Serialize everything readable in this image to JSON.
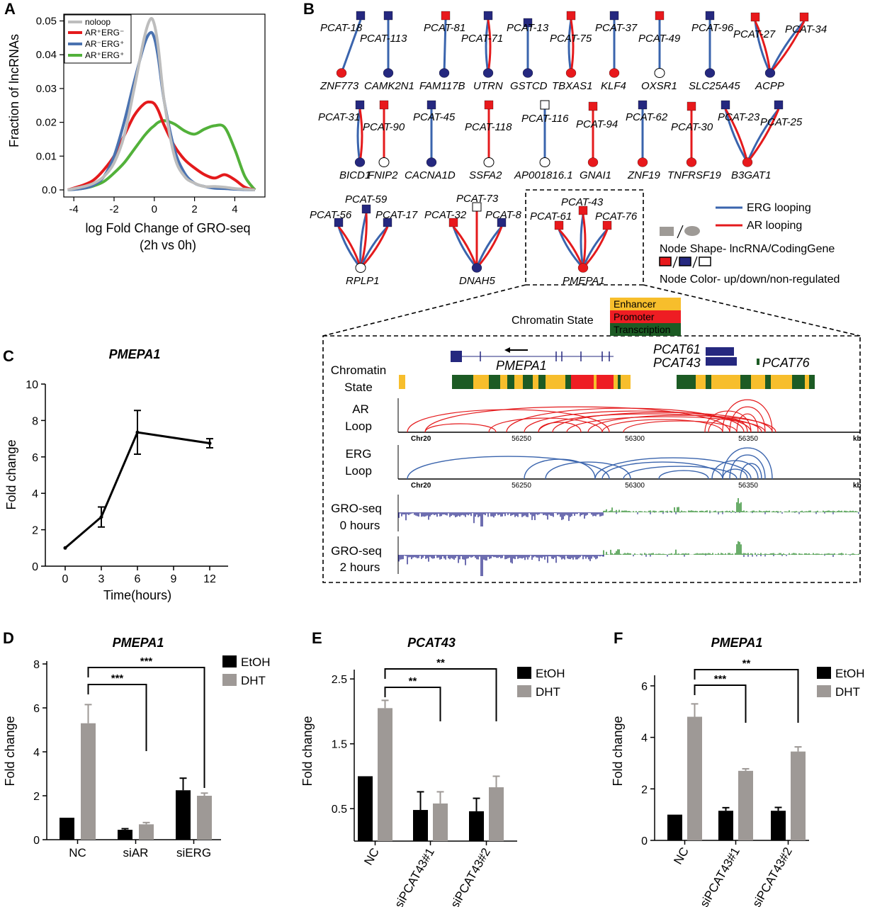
{
  "panels": {
    "A": "A",
    "B": "B",
    "C": "C",
    "D": "D",
    "E": "E",
    "F": "F"
  },
  "colors": {
    "up": "#e8191c",
    "down": "#25287f",
    "erg_loop": "#3a64ad",
    "ar_loop": "#e41a1c",
    "noloop": "#bdbdbd",
    "ar_erg_neg": "#e41a1c",
    "ar_neg_erg_pos": "#4a72b0",
    "ar_pos_erg_pos": "#52b13a",
    "enhancer": "#f7be2c",
    "promoter": "#ee1d23",
    "transcription": "#1c5b24",
    "etoh": "#000000",
    "dht": "#9e9996",
    "gro_neg": "#2f2f8f",
    "gro_pos": "#2a8a2a"
  },
  "panel_a": {
    "xlabel_line1": "log Fold Change of GRO-seq",
    "xlabel_line2": "(2h vs 0h)",
    "ylabel": "Fraction of lncRNAs",
    "xticks": [
      "-4",
      "-2",
      "0",
      "2",
      "4"
    ],
    "yticks": [
      "0.0",
      "0.01",
      "0.02",
      "0.03",
      "0.04",
      "0.05"
    ],
    "legend": [
      {
        "key": "noloop",
        "label": "noloop"
      },
      {
        "key": "ar_erg_neg",
        "label": "AR⁺ERG⁻"
      },
      {
        "key": "ar_neg_erg_pos",
        "label": "AR⁻ERG⁺"
      },
      {
        "key": "ar_pos_erg_pos",
        "label": "AR⁺ERG⁺"
      }
    ]
  },
  "panel_b": {
    "legend": {
      "erg_loop": "ERG looping",
      "ar_loop": "AR looping",
      "shape": "Node Shape- lncRNA/CodingGene",
      "color": "Node Color- up/down/non-regulated"
    },
    "lnc_labels": [
      "PCAT-18",
      "PCAT-113",
      "PCAT-81",
      "PCAT-71",
      "PCAT-13",
      "PCAT-75",
      "PCAT-37",
      "PCAT-49",
      "PCAT-96",
      "PCAT-27",
      "PCAT-34",
      "PCAT-31",
      "PCAT-90",
      "PCAT-45",
      "PCAT-118",
      "PCAT-116",
      "PCAT-94",
      "PCAT-62",
      "PCAT-30",
      "PCAT-23",
      "PCAT-25",
      "PCAT-59",
      "PCAT-56",
      "PCAT-17",
      "PCAT-73",
      "PCAT-32",
      "PCAT-8",
      "PCAT-43",
      "PCAT-61",
      "PCAT-76"
    ],
    "gene_labels": [
      "ZNF773",
      "CAMK2N1",
      "FAM117B",
      "UTRN",
      "GSTCD",
      "TBXAS1",
      "KLF4",
      "OXSR1",
      "SLC25A45",
      "ACPP",
      "BICD1",
      "FNIP2",
      "CACNA1D",
      "SSFA2",
      "AP001816.1",
      "GNAI1",
      "ZNF19",
      "TNFRSF19",
      "B3GAT1",
      "RPLP1",
      "DNAH5",
      "PMEPA1"
    ],
    "browser": {
      "chromatin_state_title": "Chromatin State",
      "states": [
        "Enhancer",
        "Promoter",
        "Transcription"
      ],
      "track_chromatin": "Chromatin State",
      "gene_pmepa1": "PMEPA1",
      "gene_pcat61": "PCAT61",
      "gene_pcat43": "PCAT43",
      "gene_pcat76": "PCAT76",
      "ar_loop": "AR Loop",
      "erg_loop": "ERG Loop",
      "gro0": "GRO-seq 0 hours",
      "gro2": "GRO-seq 2 hours",
      "chr": "Chr20",
      "kb": "kb",
      "coords": [
        "56250",
        "56300",
        "56350"
      ]
    }
  },
  "panel_c": {
    "title": "PMEPA1",
    "xlabel": "Time(hours)",
    "ylabel": "Fold change",
    "xticks": [
      "0",
      "3",
      "6",
      "9",
      "12"
    ],
    "yticks": [
      "0",
      "2",
      "4",
      "6",
      "8",
      "10"
    ]
  },
  "panel_d": {
    "title": "PMEPA1",
    "ylabel": "Fold change",
    "categories": [
      "NC",
      "siAR",
      "siERG"
    ],
    "yticks": [
      "0",
      "2",
      "4",
      "6",
      "8"
    ],
    "legend": [
      "EtOH",
      "DHT"
    ],
    "sig": [
      "***",
      "***"
    ]
  },
  "panel_e": {
    "title": "PCAT43",
    "ylabel": "Fold change",
    "categories": [
      "NC",
      "siPCAT43#1",
      "siPCAT43#2"
    ],
    "yticks": [
      "0.5",
      "1.5",
      "2.5"
    ],
    "legend": [
      "EtOH",
      "DHT"
    ],
    "sig": [
      "**",
      "**"
    ]
  },
  "panel_f": {
    "title": "PMEPA1",
    "ylabel": "Fold change",
    "categories": [
      "NC",
      "siPCAT43#1",
      "siPCAT43#2"
    ],
    "yticks": [
      "0",
      "2",
      "4",
      "6"
    ],
    "legend": [
      "EtOH",
      "DHT"
    ],
    "sig": [
      "***",
      "**"
    ]
  },
  "chart_data": [
    {
      "type": "line",
      "title": "",
      "xlabel": "log Fold Change of GRO-seq (2h vs 0h)",
      "ylabel": "Fraction of lncRNAs",
      "xlim": [
        -4.5,
        5.5
      ],
      "ylim": [
        0,
        0.052
      ],
      "x": [
        -4.3,
        -3.5,
        -3,
        -2.5,
        -2,
        -1.5,
        -1,
        -0.5,
        -0.2,
        0,
        0.2,
        0.5,
        1,
        1.5,
        2,
        2.5,
        3,
        3.5,
        4,
        4.5,
        5
      ],
      "series": [
        {
          "name": "noloop",
          "values": [
            0.0,
            0.001,
            0.002,
            0.004,
            0.008,
            0.016,
            0.03,
            0.045,
            0.0505,
            0.049,
            0.042,
            0.026,
            0.01,
            0.004,
            0.002,
            0.001,
            0.001,
            0.0008,
            0.0004,
            0.0002,
            0.0
          ]
        },
        {
          "name": "AR⁺ERG⁻",
          "values": [
            0.0,
            0.0015,
            0.003,
            0.006,
            0.01,
            0.016,
            0.022,
            0.0255,
            0.026,
            0.0255,
            0.0235,
            0.019,
            0.013,
            0.009,
            0.0065,
            0.0045,
            0.0035,
            0.0045,
            0.003,
            0.0008,
            0.0
          ]
        },
        {
          "name": "AR⁻ERG⁺",
          "values": [
            0.0,
            0.0005,
            0.0015,
            0.004,
            0.01,
            0.02,
            0.032,
            0.043,
            0.0465,
            0.045,
            0.039,
            0.026,
            0.012,
            0.005,
            0.002,
            0.001,
            0.0005,
            0.0004,
            0.0002,
            0.0001,
            0.0
          ]
        },
        {
          "name": "AR⁺ERG⁺",
          "values": [
            0.0,
            0.0005,
            0.0012,
            0.0025,
            0.005,
            0.008,
            0.012,
            0.016,
            0.018,
            0.019,
            0.02,
            0.0205,
            0.0195,
            0.0175,
            0.0165,
            0.018,
            0.019,
            0.0185,
            0.012,
            0.004,
            0.0
          ]
        }
      ]
    },
    {
      "type": "line",
      "title": "PMEPA1",
      "xlabel": "Time(hours)",
      "ylabel": "Fold change",
      "x": [
        0,
        3,
        6,
        12
      ],
      "values": [
        1.0,
        2.7,
        7.35,
        6.75
      ],
      "errors": [
        0,
        0.55,
        1.2,
        0.25
      ],
      "ylim": [
        0,
        10
      ]
    },
    {
      "type": "bar",
      "title": "PMEPA1",
      "categories": [
        "NC",
        "siAR",
        "siERG"
      ],
      "series": [
        {
          "name": "EtOH",
          "values": [
            1.0,
            0.45,
            2.25
          ],
          "errors": [
            0,
            0.05,
            0.55
          ]
        },
        {
          "name": "DHT",
          "values": [
            5.3,
            0.7,
            2.0
          ],
          "errors": [
            0.85,
            0.08,
            0.12
          ]
        }
      ],
      "ylabel": "Fold change",
      "ylim": [
        0,
        8
      ]
    },
    {
      "type": "bar",
      "title": "PCAT43",
      "categories": [
        "NC",
        "siPCAT43#1",
        "siPCAT43#2"
      ],
      "series": [
        {
          "name": "EtOH",
          "values": [
            1.0,
            0.48,
            0.46
          ],
          "errors": [
            0,
            0.28,
            0.2
          ]
        },
        {
          "name": "DHT",
          "values": [
            2.05,
            0.58,
            0.83
          ],
          "errors": [
            0.12,
            0.18,
            0.17
          ]
        }
      ],
      "ylabel": "Fold change",
      "ylim": [
        0,
        2.6
      ]
    },
    {
      "type": "bar",
      "title": "PMEPA1",
      "categories": [
        "NC",
        "siPCAT43#1",
        "siPCAT43#2"
      ],
      "series": [
        {
          "name": "EtOH",
          "values": [
            1.0,
            1.15,
            1.15
          ],
          "errors": [
            0,
            0.12,
            0.13
          ]
        },
        {
          "name": "DHT",
          "values": [
            4.8,
            2.7,
            3.45
          ],
          "errors": [
            0.5,
            0.08,
            0.18
          ]
        }
      ],
      "ylabel": "Fold change",
      "ylim": [
        0,
        6.3
      ]
    }
  ]
}
